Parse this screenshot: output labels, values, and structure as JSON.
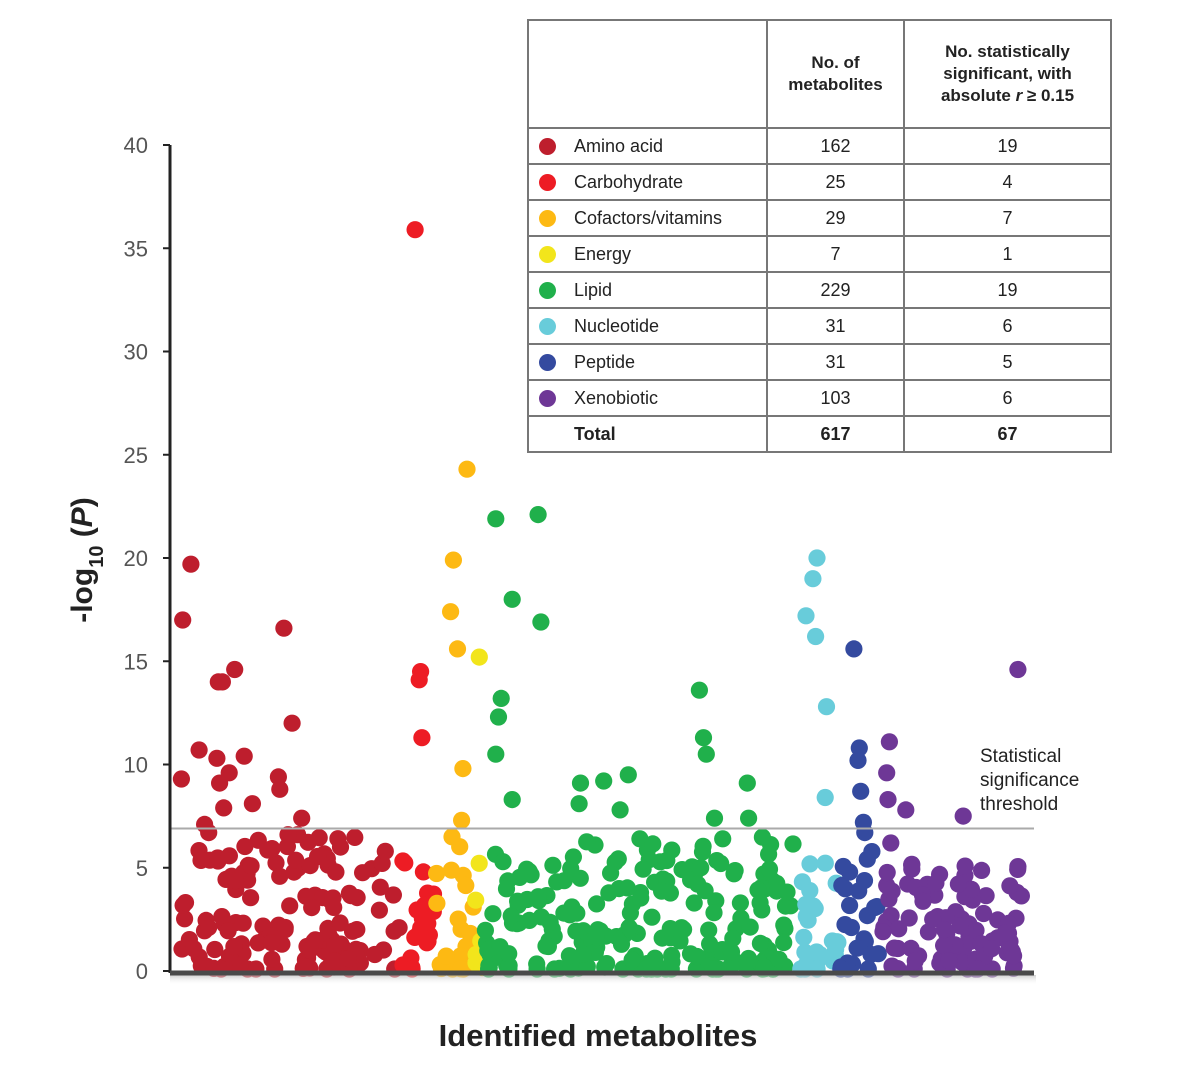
{
  "chart_data": {
    "type": "scatter",
    "title": "",
    "xlabel": "Identified metabolites",
    "ylabel_main": "-log",
    "ylabel_sub": "10",
    "ylabel_var": "P",
    "ylim": [
      0,
      40
    ],
    "yticks": [
      0,
      5,
      10,
      15,
      20,
      25,
      30,
      35,
      40
    ],
    "grid": false,
    "threshold": {
      "value": 6.9,
      "label_lines": [
        "Statistical",
        "significance",
        "threshold"
      ]
    },
    "categories": [
      {
        "name": "Amino acid",
        "color": "#BE1E2D",
        "count": 162,
        "significant": 19,
        "x_range": [
          0,
          161
        ],
        "notable_points": [
          [
            2,
            17.0
          ],
          [
            8,
            19.7
          ],
          [
            1,
            9.3
          ],
          [
            14,
            10.7
          ],
          [
            18,
            7.1
          ],
          [
            21,
            6.7
          ],
          [
            28,
            14.0
          ],
          [
            31,
            14.0
          ],
          [
            27,
            10.3
          ],
          [
            29,
            9.1
          ],
          [
            32,
            7.9
          ],
          [
            36,
            9.6
          ],
          [
            40,
            14.6
          ],
          [
            47,
            10.4
          ],
          [
            53,
            8.1
          ],
          [
            76,
            16.6
          ],
          [
            72,
            9.4
          ],
          [
            73,
            8.8
          ],
          [
            82,
            12.0
          ],
          [
            86,
            6.6
          ],
          [
            89,
            7.4
          ],
          [
            79,
            6.6
          ]
        ],
        "bulk": {
          "n": 140,
          "ymax": 6.5
        }
      },
      {
        "name": "Carbohydrate",
        "color": "#ED1C24",
        "count": 25,
        "significant": 4,
        "x_range": [
          162,
          186
        ],
        "notable_points": [
          [
            172,
            35.9
          ],
          [
            176,
            14.5
          ],
          [
            175,
            14.1
          ],
          [
            177,
            11.3
          ]
        ],
        "bulk": {
          "n": 21,
          "ymax": 5.4
        }
      },
      {
        "name": "Cofactors/vitamins",
        "color": "#FDB913",
        "count": 29,
        "significant": 7,
        "x_range": [
          187,
          215
        ],
        "notable_points": [
          [
            210,
            24.3
          ],
          [
            200,
            19.9
          ],
          [
            198,
            17.4
          ],
          [
            203,
            15.6
          ],
          [
            207,
            9.8
          ],
          [
            206,
            7.3
          ],
          [
            199,
            6.5
          ]
        ],
        "bulk": {
          "n": 22,
          "ymax": 6.2
        }
      },
      {
        "name": "Energy",
        "color": "#F2E51B",
        "count": 7,
        "significant": 1,
        "x_range": [
          216,
          222
        ],
        "notable_points": [
          [
            219,
            15.2
          ]
        ],
        "bulk": {
          "n": 6,
          "ymax": 6.0
        }
      },
      {
        "name": "Lipid",
        "color": "#20B04B",
        "count": 229,
        "significant": 19,
        "x_range": [
          223,
          451
        ],
        "notable_points": [
          [
            231,
            21.9
          ],
          [
            262,
            22.1
          ],
          [
            243,
            18.0
          ],
          [
            264,
            16.9
          ],
          [
            235,
            13.2
          ],
          [
            233,
            12.3
          ],
          [
            231,
            10.5
          ],
          [
            243,
            8.3
          ],
          [
            293,
            9.1
          ],
          [
            310,
            9.2
          ],
          [
            328,
            9.5
          ],
          [
            322,
            7.8
          ],
          [
            292,
            8.1
          ],
          [
            380,
            13.6
          ],
          [
            383,
            11.3
          ],
          [
            385,
            10.5
          ],
          [
            415,
            9.1
          ],
          [
            391,
            7.4
          ],
          [
            397,
            6.4
          ],
          [
            416,
            7.4
          ]
        ],
        "bulk": {
          "n": 209,
          "ymax": 6.5
        }
      },
      {
        "name": "Nucleotide",
        "color": "#68CCDA",
        "count": 31,
        "significant": 6,
        "x_range": [
          452,
          482
        ],
        "notable_points": [
          [
            466,
            20.0
          ],
          [
            463,
            19.0
          ],
          [
            458,
            17.2
          ],
          [
            465,
            16.2
          ],
          [
            473,
            12.8
          ],
          [
            472,
            8.4
          ]
        ],
        "bulk": {
          "n": 25,
          "ymax": 6.2
        }
      },
      {
        "name": "Peptide",
        "color": "#344A9F",
        "count": 31,
        "significant": 5,
        "x_range": [
          483,
          513
        ],
        "notable_points": [
          [
            493,
            15.6
          ],
          [
            497,
            10.8
          ],
          [
            496,
            10.2
          ],
          [
            498,
            8.7
          ],
          [
            500,
            7.2
          ],
          [
            501,
            6.7
          ]
        ],
        "bulk": {
          "n": 25,
          "ymax": 6.2
        }
      },
      {
        "name": "Xenobiotic",
        "color": "#6E3796",
        "count": 103,
        "significant": 6,
        "x_range": [
          514,
          616
        ],
        "notable_points": [
          [
            613,
            14.6
          ],
          [
            519,
            11.1
          ],
          [
            517,
            9.6
          ],
          [
            518,
            8.3
          ],
          [
            531,
            7.8
          ],
          [
            573,
            7.5
          ],
          [
            520,
            6.2
          ]
        ],
        "bulk": {
          "n": 96,
          "ymax": 5.4
        }
      }
    ]
  },
  "table": {
    "headers": [
      "",
      "No. of metabolites",
      "No. statistically significant, with absolute r ≥ 0.15"
    ],
    "header_col2_lines": [
      "No. of",
      "metabolites"
    ],
    "header_col3_lines": [
      "No. statistically",
      "significant, with",
      "absolute ",
      "r",
      " ≥ 0.15"
    ],
    "rows": [
      {
        "name": "Amino acid",
        "n": "162",
        "sig": "19",
        "color": "#BE1E2D"
      },
      {
        "name": "Carbohydrate",
        "n": "25",
        "sig": "4",
        "color": "#ED1C24"
      },
      {
        "name": "Cofactors/vitamins",
        "n": "29",
        "sig": "7",
        "color": "#FDB913"
      },
      {
        "name": "Energy",
        "n": "7",
        "sig": "1",
        "color": "#F2E51B"
      },
      {
        "name": "Lipid",
        "n": "229",
        "sig": "19",
        "color": "#20B04B"
      },
      {
        "name": "Nucleotide",
        "n": "31",
        "sig": "6",
        "color": "#68CCDA"
      },
      {
        "name": "Peptide",
        "n": "31",
        "sig": "5",
        "color": "#344A9F"
      },
      {
        "name": "Xenobiotic",
        "n": "103",
        "sig": "6",
        "color": "#6E3796"
      }
    ],
    "total": {
      "name": "Total",
      "n": "617",
      "sig": "67"
    }
  }
}
